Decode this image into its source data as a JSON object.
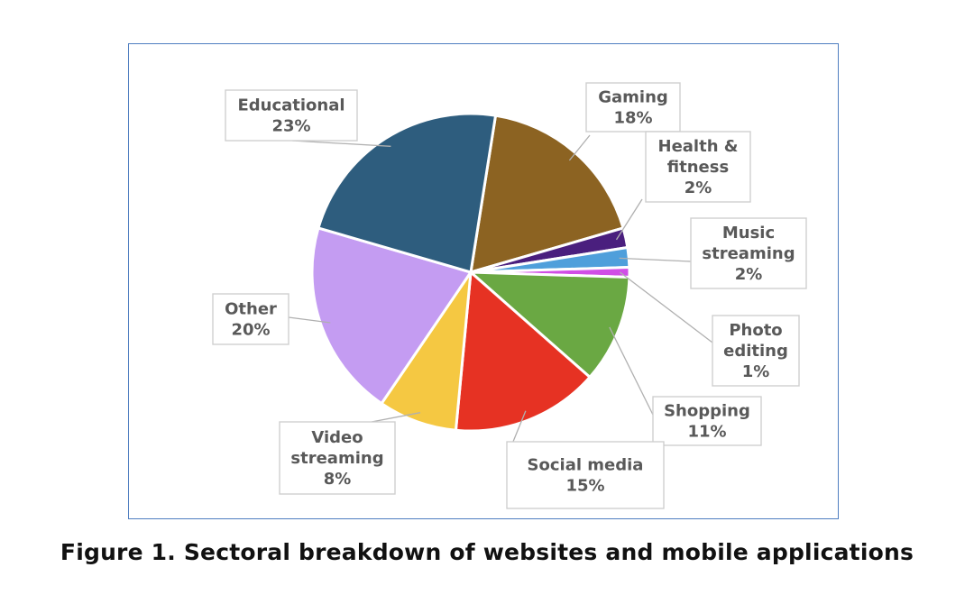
{
  "caption": "Figure 1. Sectoral breakdown of websites and mobile applications",
  "chart_data": {
    "type": "pie",
    "title": "",
    "legend": "none (data labels with leader lines)",
    "start_angle_deg": 9,
    "direction": "clockwise",
    "slices": [
      {
        "label": "Gaming",
        "value": 18,
        "display": "18%",
        "color": "#8c6322",
        "text_lines": [
          "Gaming",
          "18%"
        ]
      },
      {
        "label": "Health & fitness",
        "value": 2,
        "display": "2%",
        "color": "#4a1f7e",
        "text_lines": [
          "Health &",
          "fitness",
          "2%"
        ]
      },
      {
        "label": "Music streaming",
        "value": 2,
        "display": "2%",
        "color": "#4f9fdb",
        "text_lines": [
          "Music",
          "streaming",
          "2%"
        ]
      },
      {
        "label": "Photo editing",
        "value": 1,
        "display": "1%",
        "color": "#d04ee6",
        "text_lines": [
          "Photo",
          "editing",
          "1%"
        ]
      },
      {
        "label": "Shopping",
        "value": 11,
        "display": "11%",
        "color": "#6aa843",
        "text_lines": [
          "Shopping",
          "11%"
        ]
      },
      {
        "label": "Social media",
        "value": 15,
        "display": "15%",
        "color": "#e63223",
        "text_lines": [
          "Social media",
          "15%"
        ]
      },
      {
        "label": "Video streaming",
        "value": 8,
        "display": "8%",
        "color": "#f5c842",
        "text_lines": [
          "Video",
          "streaming",
          "8%"
        ]
      },
      {
        "label": "Other",
        "value": 20,
        "display": "20%",
        "color": "#c49cf2",
        "text_lines": [
          "Other",
          "20%"
        ]
      },
      {
        "label": "Educational",
        "value": 23,
        "display": "23%",
        "color": "#2e5d7e",
        "text_lines": [
          "Educational",
          "23%"
        ]
      }
    ]
  }
}
